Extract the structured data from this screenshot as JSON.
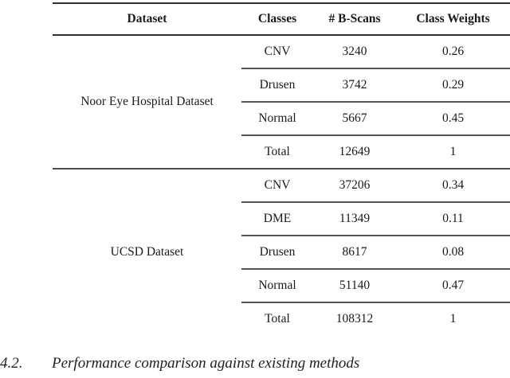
{
  "table": {
    "headers": {
      "dataset": "Dataset",
      "classes": "Classes",
      "bscans": "# B-Scans",
      "weights": "Class Weights"
    },
    "groups": [
      {
        "dataset": "Noor Eye Hospital Dataset",
        "rows": [
          {
            "class": "CNV",
            "bscans": "3240",
            "weight": "0.26"
          },
          {
            "class": "Drusen",
            "bscans": "3742",
            "weight": "0.29"
          },
          {
            "class": "Normal",
            "bscans": "5667",
            "weight": "0.45"
          },
          {
            "class": "Total",
            "bscans": "12649",
            "weight": "1"
          }
        ]
      },
      {
        "dataset": "UCSD Dataset",
        "rows": [
          {
            "class": "CNV",
            "bscans": "37206",
            "weight": "0.34"
          },
          {
            "class": "DME",
            "bscans": "11349",
            "weight": "0.11"
          },
          {
            "class": "Drusen",
            "bscans": "8617",
            "weight": "0.08"
          },
          {
            "class": "Normal",
            "bscans": "51140",
            "weight": "0.47"
          },
          {
            "class": "Total",
            "bscans": "108312",
            "weight": "1"
          }
        ]
      }
    ]
  },
  "section_heading": {
    "number": "4.2.",
    "title": "Performance comparison against existing methods"
  },
  "colors": {
    "rule_dark": "#2f2f2f",
    "rule_gray": "#565656",
    "text": "#1a1a1a"
  }
}
